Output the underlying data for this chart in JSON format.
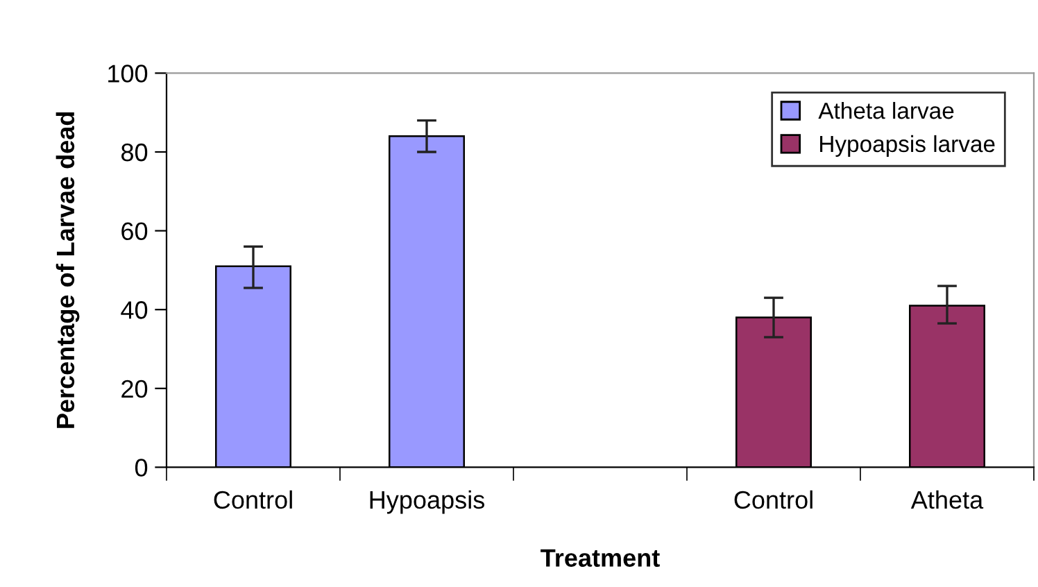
{
  "chart_data": {
    "type": "bar",
    "xlabel": "Treatment",
    "ylabel": "Percentage of Larvae dead",
    "categories": [
      "Control",
      "Hypoapsis",
      null,
      "Control",
      "Atheta"
    ],
    "series": [
      {
        "name": "Atheta larvae",
        "color": "#9999ff",
        "values": [
          51,
          84,
          null,
          null,
          null
        ],
        "errors": [
          [
            45.5,
            56
          ],
          [
            80,
            88
          ],
          null,
          null,
          null
        ]
      },
      {
        "name": "Hypoapsis larvae",
        "color": "#993366",
        "values": [
          null,
          null,
          null,
          38,
          41
        ],
        "errors": [
          null,
          null,
          null,
          [
            33,
            43
          ],
          [
            36.5,
            46
          ]
        ]
      }
    ],
    "ylim": [
      0,
      100
    ],
    "yticks": [
      0,
      20,
      40,
      60,
      80,
      100
    ],
    "grid": false,
    "legend": "top right"
  }
}
